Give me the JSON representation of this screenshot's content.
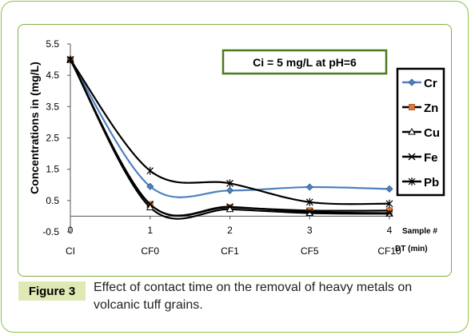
{
  "figure": {
    "label": "Figure 3",
    "caption": "Effect of contact time on the removal of heavy metals on volcanic tuff grains."
  },
  "colors": {
    "frame": "#8cc045",
    "legend_border": "#4a7a1c",
    "Cr": "#4f81bd",
    "Zn": "#e07a39",
    "Cu": "#000000",
    "Fe": "#000000",
    "Pb": "#000000"
  },
  "chart_data": {
    "type": "line",
    "smooth": true,
    "title": "",
    "annotation": "Ci = 5 mg/L at pH=6",
    "ylabel": "Concentrations in (mg/L)",
    "xlabel": "Sample # DT  (min)",
    "xlabel_line1": "Sample #",
    "xlabel_line2": "DT  (min)",
    "x": [
      0,
      1,
      2,
      3,
      4
    ],
    "x_tick_labels": [
      "0",
      "1",
      "2",
      "3",
      "4"
    ],
    "categories": [
      "CI",
      "CF0",
      "CF1",
      "CF5",
      "CF10"
    ],
    "ylim": [
      -0.5,
      5.5
    ],
    "y_ticks": [
      -0.5,
      0.5,
      1.5,
      2.5,
      3.5,
      4.5,
      5.5
    ],
    "y_tick_labels": [
      "-0.5",
      "0.5",
      "1.5",
      "2.5",
      "3.5",
      "4.5",
      "5.5"
    ],
    "grid": false,
    "legend_position": "right",
    "series": [
      {
        "name": "Cr",
        "marker": "diamond",
        "values": [
          5.0,
          0.95,
          0.82,
          0.93,
          0.87
        ]
      },
      {
        "name": "Zn",
        "marker": "square",
        "values": [
          5.0,
          0.38,
          0.28,
          0.18,
          0.18
        ]
      },
      {
        "name": "Cu",
        "marker": "triangle",
        "values": [
          5.0,
          0.28,
          0.22,
          0.1,
          0.08
        ]
      },
      {
        "name": "Fe",
        "marker": "x",
        "values": [
          5.0,
          0.38,
          0.3,
          0.14,
          0.1
        ]
      },
      {
        "name": "Pb",
        "marker": "asterisk",
        "values": [
          5.0,
          1.45,
          1.05,
          0.45,
          0.4
        ]
      }
    ]
  }
}
